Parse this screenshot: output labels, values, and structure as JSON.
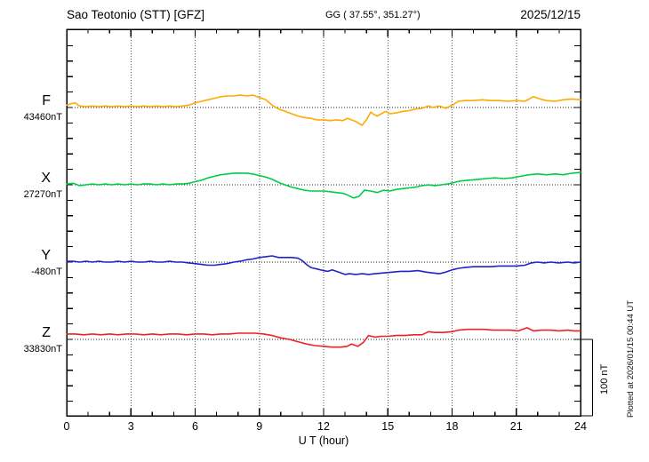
{
  "header": {
    "title": "Sao Teotonio (STT)  [GFZ]",
    "coordinates": "GG ( 37.55°, 351.27°)",
    "date": "2025/12/15"
  },
  "footer": {
    "plotted_at": "Plotted at 2026/01/15 00:44 UT"
  },
  "chart_data": {
    "type": "line",
    "title": "Sao Teotonio (STT)  [GFZ]",
    "xlabel": "U T (hour)",
    "x_range": [
      0,
      24
    ],
    "x_major_ticks": [
      0,
      3,
      6,
      9,
      12,
      15,
      18,
      21,
      24
    ],
    "x_minor_tick_step_hours": 1,
    "x_gridline_hours": [
      3,
      6,
      9,
      12,
      15,
      18,
      21
    ],
    "y_tick_step_nT": 20,
    "baseline_separation_nT": 100,
    "grid": "dotted vertical at 3h steps, dotted horizontal baseline per component",
    "legend_position": "left margin, one colored label per trace",
    "scale_bar": {
      "label": "100 nT",
      "nT": 100
    },
    "points_format": "[hour_UT, offset_nT_from_baseline]",
    "series": [
      {
        "name": "F",
        "baseline_label": "43460nT",
        "baseline_nT": 43460,
        "color": "#FFAA00",
        "points": [
          [
            0,
            3
          ],
          [
            0.2,
            5
          ],
          [
            0.4,
            6
          ],
          [
            0.6,
            2
          ],
          [
            0.9,
            1
          ],
          [
            1.2,
            2
          ],
          [
            1.5,
            1
          ],
          [
            1.8,
            2
          ],
          [
            2.1,
            1
          ],
          [
            2.4,
            2
          ],
          [
            2.7,
            1
          ],
          [
            3,
            2
          ],
          [
            3.3,
            1
          ],
          [
            3.6,
            2
          ],
          [
            3.9,
            1
          ],
          [
            4.2,
            2
          ],
          [
            4.5,
            1
          ],
          [
            4.8,
            2
          ],
          [
            5.1,
            1
          ],
          [
            5.4,
            2
          ],
          [
            5.7,
            3
          ],
          [
            6,
            6
          ],
          [
            6.3,
            8
          ],
          [
            6.6,
            10
          ],
          [
            6.9,
            12
          ],
          [
            7.2,
            14
          ],
          [
            7.5,
            15
          ],
          [
            7.8,
            15
          ],
          [
            8.1,
            16
          ],
          [
            8.4,
            15
          ],
          [
            8.7,
            16
          ],
          [
            9,
            13
          ],
          [
            9.3,
            10
          ],
          [
            9.6,
            3
          ],
          [
            9.9,
            -2
          ],
          [
            10.2,
            -5
          ],
          [
            10.5,
            -8
          ],
          [
            10.8,
            -11
          ],
          [
            11.1,
            -13
          ],
          [
            11.4,
            -14
          ],
          [
            11.7,
            -16
          ],
          [
            12,
            -16
          ],
          [
            12.3,
            -17
          ],
          [
            12.6,
            -16
          ],
          [
            12.9,
            -17
          ],
          [
            13.1,
            -14
          ],
          [
            13.3,
            -16
          ],
          [
            13.5,
            -18
          ],
          [
            13.8,
            -23
          ],
          [
            14,
            -16
          ],
          [
            14.2,
            -6
          ],
          [
            14.35,
            -9
          ],
          [
            14.5,
            -11
          ],
          [
            14.7,
            -8
          ],
          [
            14.9,
            -5
          ],
          [
            15.1,
            -8
          ],
          [
            15.4,
            -7
          ],
          [
            15.7,
            -5
          ],
          [
            16,
            -4
          ],
          [
            16.3,
            -2
          ],
          [
            16.6,
            -1
          ],
          [
            16.9,
            2
          ],
          [
            17.1,
            0
          ],
          [
            17.4,
            2
          ],
          [
            17.7,
            -1
          ],
          [
            18,
            3
          ],
          [
            18.3,
            8
          ],
          [
            18.6,
            9
          ],
          [
            19,
            9
          ],
          [
            19.4,
            10
          ],
          [
            19.8,
            9
          ],
          [
            20.2,
            9
          ],
          [
            20.6,
            8
          ],
          [
            21,
            9
          ],
          [
            21.4,
            8
          ],
          [
            21.8,
            14
          ],
          [
            22.1,
            11
          ],
          [
            22.4,
            9
          ],
          [
            22.8,
            8
          ],
          [
            23.2,
            10
          ],
          [
            23.6,
            11
          ],
          [
            24,
            10
          ]
        ]
      },
      {
        "name": "X",
        "baseline_label": "27270nT",
        "baseline_nT": 27270,
        "color": "#00CC44",
        "points": [
          [
            0,
            1
          ],
          [
            0.3,
            2
          ],
          [
            0.6,
            -1
          ],
          [
            0.9,
            0
          ],
          [
            1.2,
            1
          ],
          [
            1.5,
            0
          ],
          [
            1.8,
            1
          ],
          [
            2.1,
            0
          ],
          [
            2.4,
            1
          ],
          [
            2.7,
            0
          ],
          [
            3,
            1
          ],
          [
            3.3,
            0
          ],
          [
            3.6,
            1
          ],
          [
            3.9,
            1
          ],
          [
            4.2,
            0
          ],
          [
            4.5,
            1
          ],
          [
            4.8,
            0
          ],
          [
            5.1,
            1
          ],
          [
            5.4,
            1
          ],
          [
            5.7,
            2
          ],
          [
            6,
            4
          ],
          [
            6.3,
            6
          ],
          [
            6.6,
            9
          ],
          [
            6.9,
            11
          ],
          [
            7.2,
            13
          ],
          [
            7.5,
            14
          ],
          [
            7.8,
            15
          ],
          [
            8.1,
            15
          ],
          [
            8.4,
            15
          ],
          [
            8.7,
            14
          ],
          [
            9,
            12
          ],
          [
            9.3,
            10
          ],
          [
            9.6,
            7
          ],
          [
            9.9,
            3
          ],
          [
            10.2,
            0
          ],
          [
            10.5,
            -3
          ],
          [
            10.8,
            -5
          ],
          [
            11.1,
            -7
          ],
          [
            11.4,
            -8
          ],
          [
            11.7,
            -8
          ],
          [
            12,
            -8
          ],
          [
            12.3,
            -9
          ],
          [
            12.6,
            -10
          ],
          [
            12.9,
            -11
          ],
          [
            13.1,
            -13
          ],
          [
            13.4,
            -17
          ],
          [
            13.65,
            -15
          ],
          [
            13.9,
            -7
          ],
          [
            14.2,
            -8
          ],
          [
            14.5,
            -10
          ],
          [
            14.8,
            -7
          ],
          [
            15.1,
            -8
          ],
          [
            15.4,
            -6
          ],
          [
            15.7,
            -5
          ],
          [
            16,
            -4
          ],
          [
            16.3,
            -3
          ],
          [
            16.6,
            -1
          ],
          [
            16.9,
            0
          ],
          [
            17.2,
            -1
          ],
          [
            17.5,
            0
          ],
          [
            17.8,
            1
          ],
          [
            18.1,
            3
          ],
          [
            18.4,
            5
          ],
          [
            18.8,
            6
          ],
          [
            19.2,
            7
          ],
          [
            19.6,
            8
          ],
          [
            20,
            9
          ],
          [
            20.4,
            8
          ],
          [
            20.8,
            9
          ],
          [
            21.2,
            11
          ],
          [
            21.6,
            13
          ],
          [
            22,
            14
          ],
          [
            22.4,
            13
          ],
          [
            22.8,
            14
          ],
          [
            23.2,
            13
          ],
          [
            23.6,
            15
          ],
          [
            24,
            16
          ]
        ]
      },
      {
        "name": "Y",
        "baseline_label": "-480nT",
        "baseline_nT": -480,
        "color": "#2222CC",
        "points": [
          [
            0,
            1
          ],
          [
            0.3,
            1
          ],
          [
            0.6,
            0
          ],
          [
            0.9,
            1
          ],
          [
            1.2,
            0
          ],
          [
            1.5,
            1
          ],
          [
            1.8,
            0
          ],
          [
            2.1,
            0
          ],
          [
            2.4,
            1
          ],
          [
            2.7,
            0
          ],
          [
            3,
            1
          ],
          [
            3.3,
            0
          ],
          [
            3.6,
            0
          ],
          [
            3.9,
            1
          ],
          [
            4.2,
            0
          ],
          [
            4.5,
            0
          ],
          [
            4.8,
            1
          ],
          [
            5.1,
            0
          ],
          [
            5.4,
            0
          ],
          [
            5.7,
            -1
          ],
          [
            6,
            -2
          ],
          [
            6.3,
            -3
          ],
          [
            6.6,
            -4
          ],
          [
            6.9,
            -4
          ],
          [
            7.2,
            -3
          ],
          [
            7.5,
            -2
          ],
          [
            7.8,
            0
          ],
          [
            8.1,
            1
          ],
          [
            8.4,
            3
          ],
          [
            8.7,
            4
          ],
          [
            9,
            6
          ],
          [
            9.3,
            7
          ],
          [
            9.6,
            8
          ],
          [
            9.9,
            6
          ],
          [
            10.2,
            6
          ],
          [
            10.5,
            6
          ],
          [
            10.8,
            5
          ],
          [
            11,
            2
          ],
          [
            11.2,
            -3
          ],
          [
            11.4,
            -7
          ],
          [
            11.7,
            -9
          ],
          [
            12,
            -11
          ],
          [
            12.2,
            -12
          ],
          [
            12.4,
            -10
          ],
          [
            12.7,
            -13
          ],
          [
            13,
            -16
          ],
          [
            13.2,
            -15
          ],
          [
            13.5,
            -16
          ],
          [
            13.8,
            -15
          ],
          [
            14.1,
            -16
          ],
          [
            14.4,
            -15
          ],
          [
            14.8,
            -14
          ],
          [
            15.2,
            -13
          ],
          [
            15.6,
            -12
          ],
          [
            16,
            -12
          ],
          [
            16.4,
            -11
          ],
          [
            16.8,
            -13
          ],
          [
            17.1,
            -14
          ],
          [
            17.4,
            -15
          ],
          [
            17.7,
            -13
          ],
          [
            18,
            -10
          ],
          [
            18.3,
            -8
          ],
          [
            18.6,
            -7
          ],
          [
            19,
            -6
          ],
          [
            19.4,
            -6
          ],
          [
            19.8,
            -6
          ],
          [
            20.2,
            -5
          ],
          [
            20.6,
            -5
          ],
          [
            21,
            -5
          ],
          [
            21.4,
            -4
          ],
          [
            21.7,
            -1
          ],
          [
            22,
            0
          ],
          [
            22.3,
            -1
          ],
          [
            22.6,
            0
          ],
          [
            23,
            -1
          ],
          [
            23.4,
            0
          ],
          [
            23.7,
            -1
          ],
          [
            24,
            0
          ]
        ]
      },
      {
        "name": "Z",
        "baseline_label": "33830nT",
        "baseline_nT": 33830,
        "color": "#EE2222",
        "points": [
          [
            0,
            7
          ],
          [
            0.4,
            7
          ],
          [
            0.8,
            6
          ],
          [
            1.2,
            7
          ],
          [
            1.6,
            6
          ],
          [
            2,
            7
          ],
          [
            2.4,
            6
          ],
          [
            2.8,
            7
          ],
          [
            3.2,
            7
          ],
          [
            3.6,
            6
          ],
          [
            4,
            7
          ],
          [
            4.4,
            6
          ],
          [
            4.8,
            7
          ],
          [
            5.2,
            7
          ],
          [
            5.6,
            6
          ],
          [
            6,
            7
          ],
          [
            6.4,
            7
          ],
          [
            6.8,
            6
          ],
          [
            7.2,
            7
          ],
          [
            7.6,
            7
          ],
          [
            8,
            8
          ],
          [
            8.4,
            8
          ],
          [
            8.8,
            8
          ],
          [
            9.2,
            7
          ],
          [
            9.6,
            5
          ],
          [
            10,
            2
          ],
          [
            10.4,
            0
          ],
          [
            10.8,
            -3
          ],
          [
            11.2,
            -6
          ],
          [
            11.6,
            -8
          ],
          [
            12,
            -9
          ],
          [
            12.4,
            -10
          ],
          [
            12.8,
            -10
          ],
          [
            13.1,
            -9
          ],
          [
            13.3,
            -6
          ],
          [
            13.6,
            -9
          ],
          [
            13.85,
            -4
          ],
          [
            14.1,
            5
          ],
          [
            14.4,
            3
          ],
          [
            14.7,
            4
          ],
          [
            15,
            4
          ],
          [
            15.4,
            5
          ],
          [
            15.8,
            5
          ],
          [
            16.2,
            6
          ],
          [
            16.6,
            6
          ],
          [
            16.9,
            10
          ],
          [
            17.2,
            9
          ],
          [
            17.6,
            9
          ],
          [
            18,
            10
          ],
          [
            18.3,
            12
          ],
          [
            18.7,
            13
          ],
          [
            19.1,
            13
          ],
          [
            19.5,
            13
          ],
          [
            19.9,
            12
          ],
          [
            20.3,
            12
          ],
          [
            20.7,
            12
          ],
          [
            21.1,
            11
          ],
          [
            21.5,
            15
          ],
          [
            21.8,
            11
          ],
          [
            22.2,
            12
          ],
          [
            22.6,
            12
          ],
          [
            23,
            11
          ],
          [
            23.4,
            12
          ],
          [
            23.7,
            11
          ],
          [
            24,
            11
          ]
        ]
      }
    ]
  }
}
